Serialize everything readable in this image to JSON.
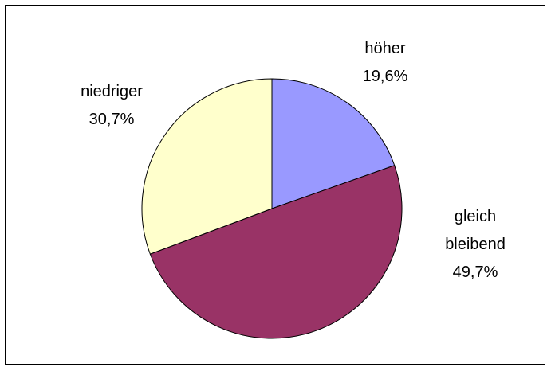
{
  "chart_data": {
    "type": "pie",
    "categories": [
      "höher",
      "gleich bleibend",
      "niedriger"
    ],
    "values": [
      19.6,
      49.7,
      30.7
    ],
    "value_labels": [
      "19,6%",
      "49,7%",
      "30,7%"
    ],
    "colors": [
      "#9999ff",
      "#993366",
      "#ffffcc"
    ]
  }
}
